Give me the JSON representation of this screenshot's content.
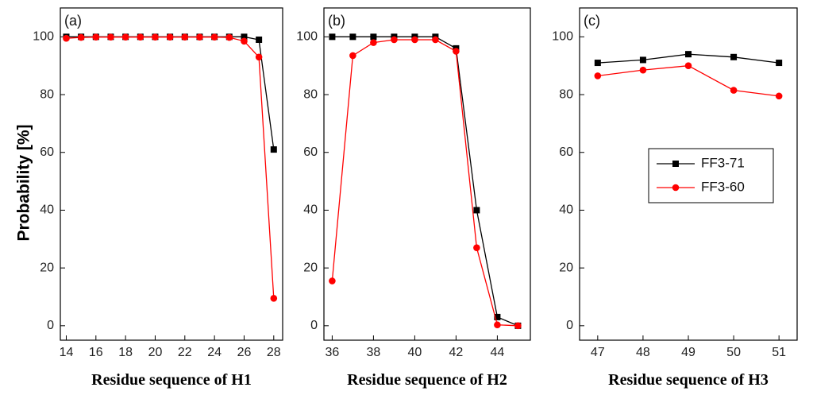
{
  "colors": {
    "series_black": "#000000",
    "series_red": "#ff0000"
  },
  "chart_data": [
    {
      "type": "line",
      "panel_label": "(a)",
      "xlabel": "Residue sequence of H1",
      "ylabel": "Probability [%]",
      "xlim": [
        13.6,
        28.6
      ],
      "ylim": [
        -5,
        110
      ],
      "xticks": [
        14,
        16,
        18,
        20,
        22,
        24,
        26,
        28
      ],
      "yticks": [
        0,
        20,
        40,
        60,
        80,
        100
      ],
      "x": [
        14,
        15,
        16,
        17,
        18,
        19,
        20,
        21,
        22,
        23,
        24,
        25,
        26,
        27,
        28
      ],
      "series": [
        {
          "name": "FF3-71",
          "marker": "square",
          "color": "#000000",
          "values": [
            100,
            100,
            100,
            100,
            100,
            100,
            100,
            100,
            100,
            100,
            100,
            100,
            100,
            99,
            61
          ]
        },
        {
          "name": "FF3-60",
          "marker": "circle",
          "color": "#ff0000",
          "values": [
            99.5,
            99.8,
            99.9,
            99.9,
            99.9,
            99.9,
            99.9,
            99.9,
            99.9,
            99.9,
            99.9,
            99.8,
            98.5,
            93,
            9.5
          ]
        }
      ]
    },
    {
      "type": "line",
      "panel_label": "(b)",
      "xlabel": "Residue sequence of H2",
      "xlim": [
        35.6,
        45.6
      ],
      "ylim": [
        -5,
        110
      ],
      "xticks": [
        36,
        38,
        40,
        42,
        44
      ],
      "yticks": [
        0,
        20,
        40,
        60,
        80,
        100
      ],
      "x": [
        36,
        37,
        38,
        39,
        40,
        41,
        42,
        43,
        44,
        45
      ],
      "series": [
        {
          "name": "FF3-71",
          "marker": "square",
          "color": "#000000",
          "values": [
            100,
            100,
            100,
            100,
            100,
            100,
            96,
            40,
            3,
            0
          ]
        },
        {
          "name": "FF3-60",
          "marker": "circle",
          "color": "#ff0000",
          "values": [
            15.5,
            93.5,
            98,
            99,
            99,
            99,
            95,
            27,
            0.3,
            0
          ]
        }
      ]
    },
    {
      "type": "line",
      "panel_label": "(c)",
      "xlabel": "Residue sequence of H3",
      "xlim": [
        46.6,
        51.4
      ],
      "ylim": [
        -5,
        110
      ],
      "xticks": [
        47,
        48,
        49,
        50,
        51
      ],
      "yticks": [
        0,
        20,
        40,
        60,
        80,
        100
      ],
      "x": [
        47,
        48,
        49,
        50,
        51
      ],
      "legend": {
        "position": "center",
        "entries": [
          "FF3-71",
          "FF3-60"
        ]
      },
      "series": [
        {
          "name": "FF3-71",
          "marker": "square",
          "color": "#000000",
          "values": [
            91,
            92,
            94,
            93,
            91
          ]
        },
        {
          "name": "FF3-60",
          "marker": "circle",
          "color": "#ff0000",
          "values": [
            86.5,
            88.5,
            90,
            81.5,
            79.5
          ]
        }
      ]
    }
  ]
}
